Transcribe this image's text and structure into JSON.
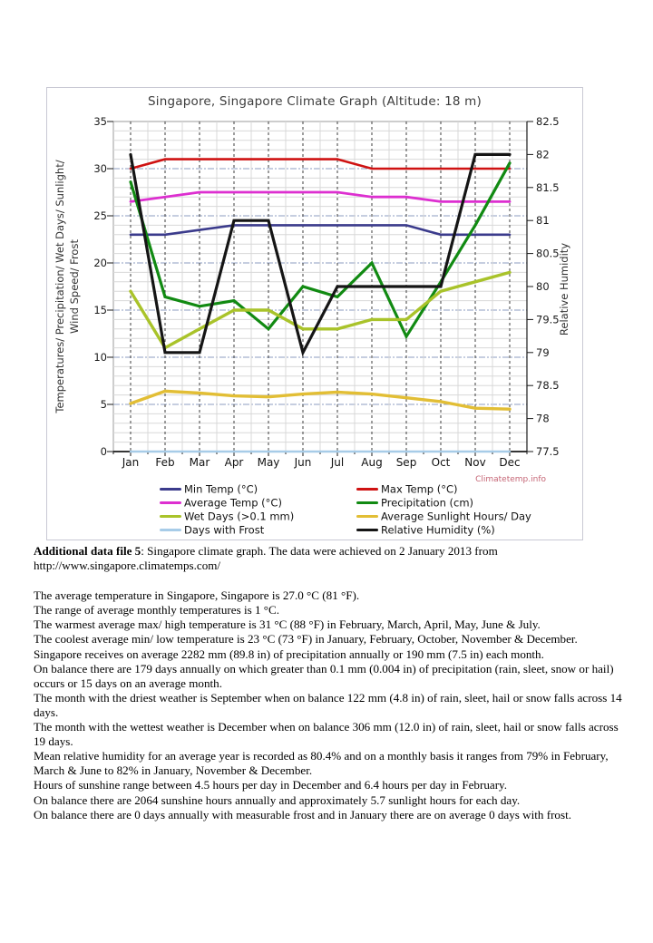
{
  "figure": {
    "title": "Singapore, Singapore Climate Graph (Altitude: 18 m)",
    "watermark": "Climatetemp.info",
    "left_axis_label_line1": "Temperatures/ Precipitation/ Wet Days/ Sunlight/",
    "left_axis_label_line2": "Wind Speed/ Frost",
    "right_axis_label": "Relative Humidity"
  },
  "chart_data": {
    "type": "line",
    "title": "Singapore, Singapore Climate Graph (Altitude: 18 m)",
    "categories": [
      "Jan",
      "Feb",
      "Mar",
      "Apr",
      "May",
      "Jun",
      "Jul",
      "Aug",
      "Sep",
      "Oct",
      "Nov",
      "Dec"
    ],
    "left_axis": {
      "label": "Temperatures/ Precipitation/ Wet Days/ Sunlight/ Wind Speed/ Frost",
      "min": 0,
      "max": 35,
      "step": 5
    },
    "right_axis": {
      "label": "Relative Humidity",
      "min": 77.5,
      "max": 82.5,
      "step": 0.5
    },
    "grid": true,
    "legend_position": "bottom",
    "series": [
      {
        "name": "Min Temp (°C)",
        "color": "#3b3b8c",
        "axis": "left",
        "values": [
          23,
          23,
          23.5,
          24,
          24,
          24,
          24,
          24,
          24,
          23,
          23,
          23
        ]
      },
      {
        "name": "Max Temp (°C)",
        "color": "#cf1212",
        "axis": "left",
        "values": [
          30,
          31,
          31,
          31,
          31,
          31,
          31,
          30,
          30,
          30,
          30,
          30
        ]
      },
      {
        "name": "Average Temp (°C)",
        "color": "#dd2fd0",
        "axis": "left",
        "values": [
          26.5,
          27,
          27.5,
          27.5,
          27.5,
          27.5,
          27.5,
          27,
          27,
          26.5,
          26.5,
          26.5
        ]
      },
      {
        "name": "Precipitation (cm)",
        "color": "#118a12",
        "axis": "left",
        "values": [
          28.6,
          16.4,
          15.4,
          16,
          13,
          17.5,
          16.4,
          20,
          12.2,
          18,
          24,
          30.6
        ]
      },
      {
        "name": "Wet Days (>0.1 mm)",
        "color": "#a9c32a",
        "axis": "left",
        "values": [
          17,
          11,
          13,
          15,
          15,
          13,
          13,
          14,
          14,
          17,
          18,
          19
        ]
      },
      {
        "name": "Average Sunlight Hours/ Day",
        "color": "#e2be35",
        "axis": "left",
        "values": [
          5.1,
          6.4,
          6.2,
          5.9,
          5.8,
          6.1,
          6.3,
          6.1,
          5.7,
          5.3,
          4.6,
          4.5
        ]
      },
      {
        "name": "Days with Frost",
        "color": "#a7cce8",
        "axis": "left",
        "values": [
          0,
          0,
          0,
          0,
          0,
          0,
          0,
          0,
          0,
          0,
          0,
          0
        ]
      },
      {
        "name": "Relative Humidity (%)",
        "color": "#151515",
        "axis": "right",
        "values": [
          82,
          79,
          79,
          81,
          81,
          79,
          80,
          80,
          80,
          80,
          82,
          82
        ]
      }
    ]
  },
  "document": {
    "caption_lead": "Additional data file 5",
    "caption_rest": ": Singapore climate graph. The data were achieved on 2 January 2013 from http://www.singapore.climatemps.com/",
    "paragraphs": [
      "The average temperature in Singapore, Singapore is 27.0 °C (81 °F).",
      "The range of average monthly temperatures is 1 °C.",
      "The warmest average max/ high temperature is 31 °C (88 °F) in February, March, April, May, June & July.",
      "The coolest average min/ low temperature is 23 °C (73 °F) in January, February, October, November & December.",
      "Singapore receives on average 2282 mm (89.8 in) of precipitation annually or 190 mm (7.5 in) each month.",
      "On balance there are 179 days annually on which greater than 0.1 mm (0.004 in) of precipitation (rain, sleet, snow or hail) occurs or 15 days on an average month.",
      "The month with the driest weather is September when on balance 122 mm (4.8 in) of rain, sleet, hail or snow falls across 14 days.",
      "The month with the wettest weather is December when on balance 306 mm (12.0 in) of rain, sleet, hail or snow falls across 19 days.",
      "Mean relative humidity for an average year is recorded as 80.4% and on a monthly basis it ranges from 79% in February, March & June to 82% in January, November & December.",
      "Hours of sunshine range between 4.5 hours per day in December and 6.4 hours per day in February.",
      "On balance there are 2064 sunshine hours annually and approximately 5.7 sunlight hours for each day.",
      "On balance there are 0 days annually with measurable frost and in January there are on average 0 days with frost."
    ]
  }
}
